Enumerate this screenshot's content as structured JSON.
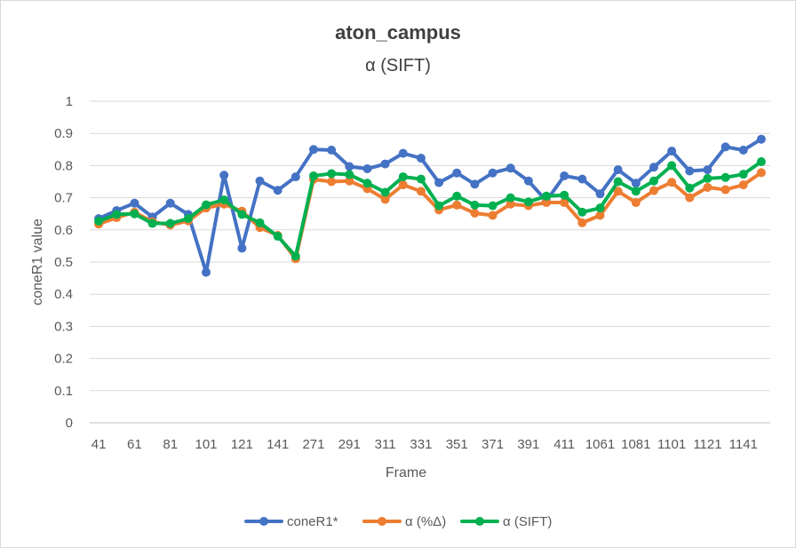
{
  "chart_data": {
    "type": "line",
    "title": "aton_campus",
    "subtitle": "α (SIFT)",
    "xlabel": "Frame",
    "ylabel": "coneR1 value",
    "ylim": [
      0,
      1
    ],
    "ytick_step": 0.1,
    "y_ticks": [
      "0",
      "0.1",
      "0.2",
      "0.3",
      "0.4",
      "0.5",
      "0.6",
      "0.7",
      "0.8",
      "0.9",
      "1"
    ],
    "grid": true,
    "legend_position": "bottom",
    "categories": [
      "41",
      "51",
      "61",
      "71",
      "81",
      "91",
      "101",
      "111",
      "121",
      "131",
      "141",
      "151",
      "271",
      "281",
      "291",
      "301",
      "311",
      "321",
      "331",
      "341",
      "351",
      "361",
      "371",
      "381",
      "391",
      "401",
      "411",
      "421",
      "1061",
      "1071",
      "1081",
      "1091",
      "1101",
      "1111",
      "1121",
      "1131",
      "1141",
      "1151"
    ],
    "x_tick_labels": [
      "41",
      "61",
      "81",
      "101",
      "121",
      "141",
      "271",
      "291",
      "311",
      "331",
      "351",
      "371",
      "391",
      "411",
      "1061",
      "1081",
      "1101",
      "1121",
      "1141"
    ],
    "series": [
      {
        "name": "coneR1*",
        "color": "#4472C4",
        "values": [
          0.635,
          0.66,
          0.683,
          0.64,
          0.683,
          0.648,
          0.468,
          0.77,
          0.543,
          0.752,
          0.723,
          0.765,
          0.85,
          0.848,
          0.797,
          0.79,
          0.805,
          0.838,
          0.823,
          0.747,
          0.777,
          0.742,
          0.777,
          0.792,
          0.752,
          0.69,
          0.768,
          0.758,
          0.712,
          0.787,
          0.745,
          0.795,
          0.845,
          0.783,
          0.787,
          0.858,
          0.848,
          0.882
        ]
      },
      {
        "name": "α (%Δ)",
        "color": "#ED7D31",
        "values": [
          0.618,
          0.638,
          0.655,
          0.625,
          0.615,
          0.628,
          0.668,
          0.68,
          0.658,
          0.607,
          0.583,
          0.51,
          0.757,
          0.75,
          0.752,
          0.728,
          0.695,
          0.74,
          0.72,
          0.662,
          0.677,
          0.652,
          0.645,
          0.68,
          0.675,
          0.685,
          0.685,
          0.622,
          0.645,
          0.72,
          0.685,
          0.722,
          0.748,
          0.7,
          0.732,
          0.725,
          0.74,
          0.778
        ]
      },
      {
        "name": "α (SIFT)",
        "color": "#00B050",
        "values": [
          0.627,
          0.648,
          0.65,
          0.62,
          0.62,
          0.635,
          0.678,
          0.693,
          0.648,
          0.622,
          0.58,
          0.518,
          0.768,
          0.775,
          0.772,
          0.745,
          0.717,
          0.765,
          0.758,
          0.675,
          0.705,
          0.677,
          0.675,
          0.7,
          0.687,
          0.705,
          0.708,
          0.655,
          0.668,
          0.75,
          0.72,
          0.752,
          0.8,
          0.73,
          0.76,
          0.763,
          0.773,
          0.812
        ]
      }
    ]
  }
}
